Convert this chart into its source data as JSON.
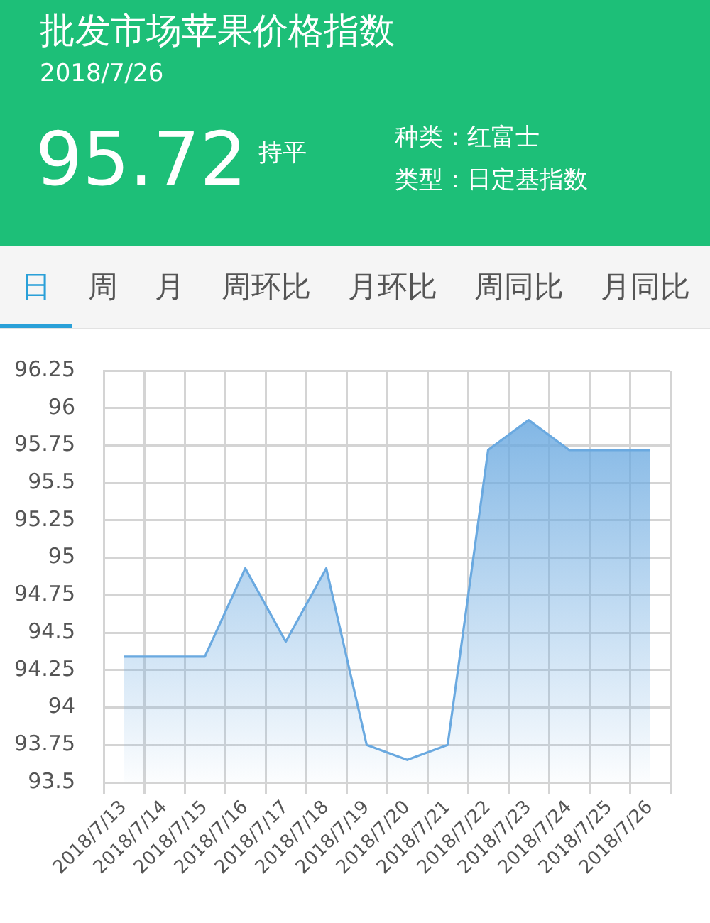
{
  "chart_data": {
    "type": "area",
    "title": "批发市场苹果价格指数",
    "subtitle": "2018/7/26",
    "annotations": [
      "95.72",
      "持平",
      "种类：红富士",
      "类型：日定基指数",
      "日",
      "周",
      "月",
      "周环比",
      "月环比",
      "周同比",
      "月同比"
    ],
    "categories": [
      "2018/7/13",
      "2018/7/14",
      "2018/7/15",
      "2018/7/16",
      "2018/7/17",
      "2018/7/18",
      "2018/7/19",
      "2018/7/20",
      "2018/7/21",
      "2018/7/22",
      "2018/7/23",
      "2018/7/24",
      "2018/7/25",
      "2018/7/26"
    ],
    "values": [
      94.34,
      94.34,
      94.34,
      94.93,
      94.44,
      94.93,
      93.75,
      93.65,
      93.75,
      95.72,
      95.92,
      95.72,
      95.72,
      95.72
    ],
    "color": "#6aa9e0",
    "ylim": [
      93.5,
      96.25
    ],
    "yticks": [
      93.5,
      93.75,
      94,
      94.25,
      94.5,
      94.75,
      95,
      95.25,
      95.5,
      95.75,
      96,
      96.25
    ],
    "grid": true
  }
}
